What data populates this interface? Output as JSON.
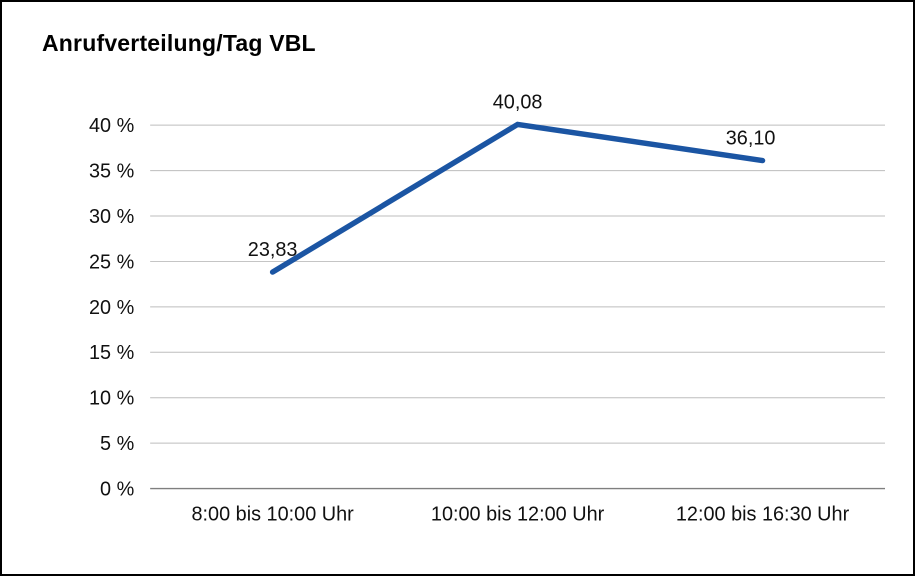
{
  "chart_data": {
    "type": "line",
    "title": "Anrufverteilung/Tag VBL",
    "categories": [
      "8:00 bis 10:00 Uhr",
      "10:00 bis 12:00 Uhr",
      "12:00 bis 16:30 Uhr"
    ],
    "series": [
      {
        "name": "Anrufverteilung/Tag VBL",
        "values": [
          23.83,
          40.08,
          36.1
        ]
      }
    ],
    "data_labels": [
      "23,83",
      "40,08",
      "36,10"
    ],
    "ylim": [
      0,
      40
    ],
    "ytick_step": 5,
    "ytick_labels": [
      "0 %",
      "5 %",
      "10 %",
      "15 %",
      "20 %",
      "25 %",
      "30 %",
      "35 %",
      "40 %"
    ],
    "xlabel": "",
    "ylabel": "",
    "grid": true,
    "legend": "none",
    "line_color": "#1B55A3",
    "grid_color": "#bdbdbd",
    "axis_color": "#7f7f7f",
    "text_color": "#111111"
  }
}
